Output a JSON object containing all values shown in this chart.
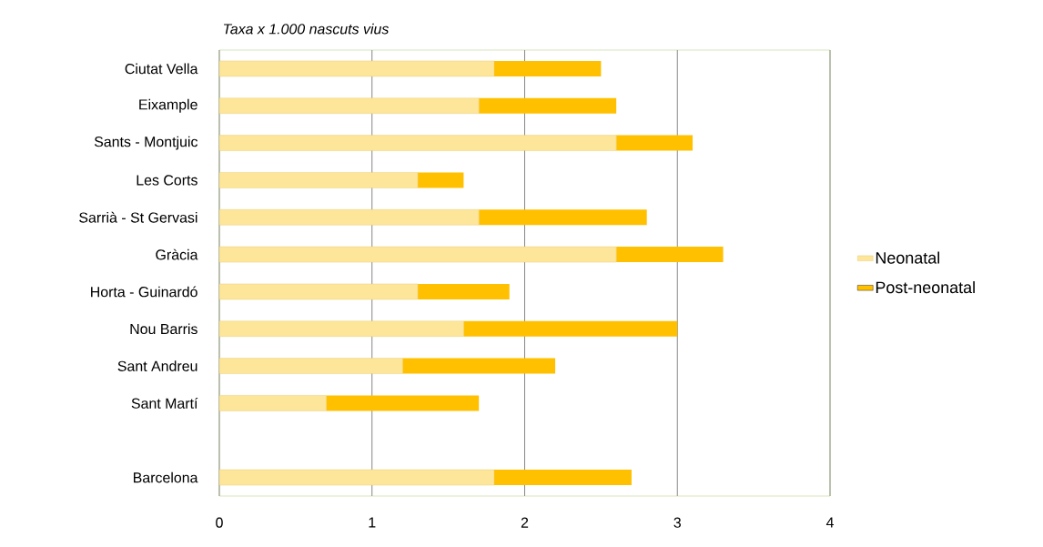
{
  "chart_data": {
    "type": "bar",
    "orientation": "horizontal",
    "stacked": true,
    "title": "Taxa x 1.000 nascuts vius",
    "categories": [
      "Ciutat Vella",
      "Eixample",
      "Sants - Montjuic",
      "Les Corts",
      "Sarrià - St Gervasi",
      "Gràcia",
      "Horta - Guinardó",
      "Nou Barris",
      "Sant Andreu",
      "Sant Martí",
      null,
      "Barcelona"
    ],
    "series": [
      {
        "name": "Neonatal",
        "color": "#fde699",
        "values": [
          1.8,
          1.7,
          2.6,
          1.3,
          1.7,
          2.6,
          1.3,
          1.6,
          1.2,
          0.7,
          null,
          1.8
        ]
      },
      {
        "name": "Post-neonatal",
        "color": "#ffc000",
        "values": [
          0.7,
          0.9,
          0.5,
          0.3,
          1.1,
          0.7,
          0.6,
          1.4,
          1.0,
          1.0,
          null,
          0.9
        ]
      }
    ],
    "xlim": [
      0,
      4
    ],
    "xticks": [
      0,
      1,
      2,
      3,
      4
    ],
    "grid": "x",
    "legend": "right"
  }
}
